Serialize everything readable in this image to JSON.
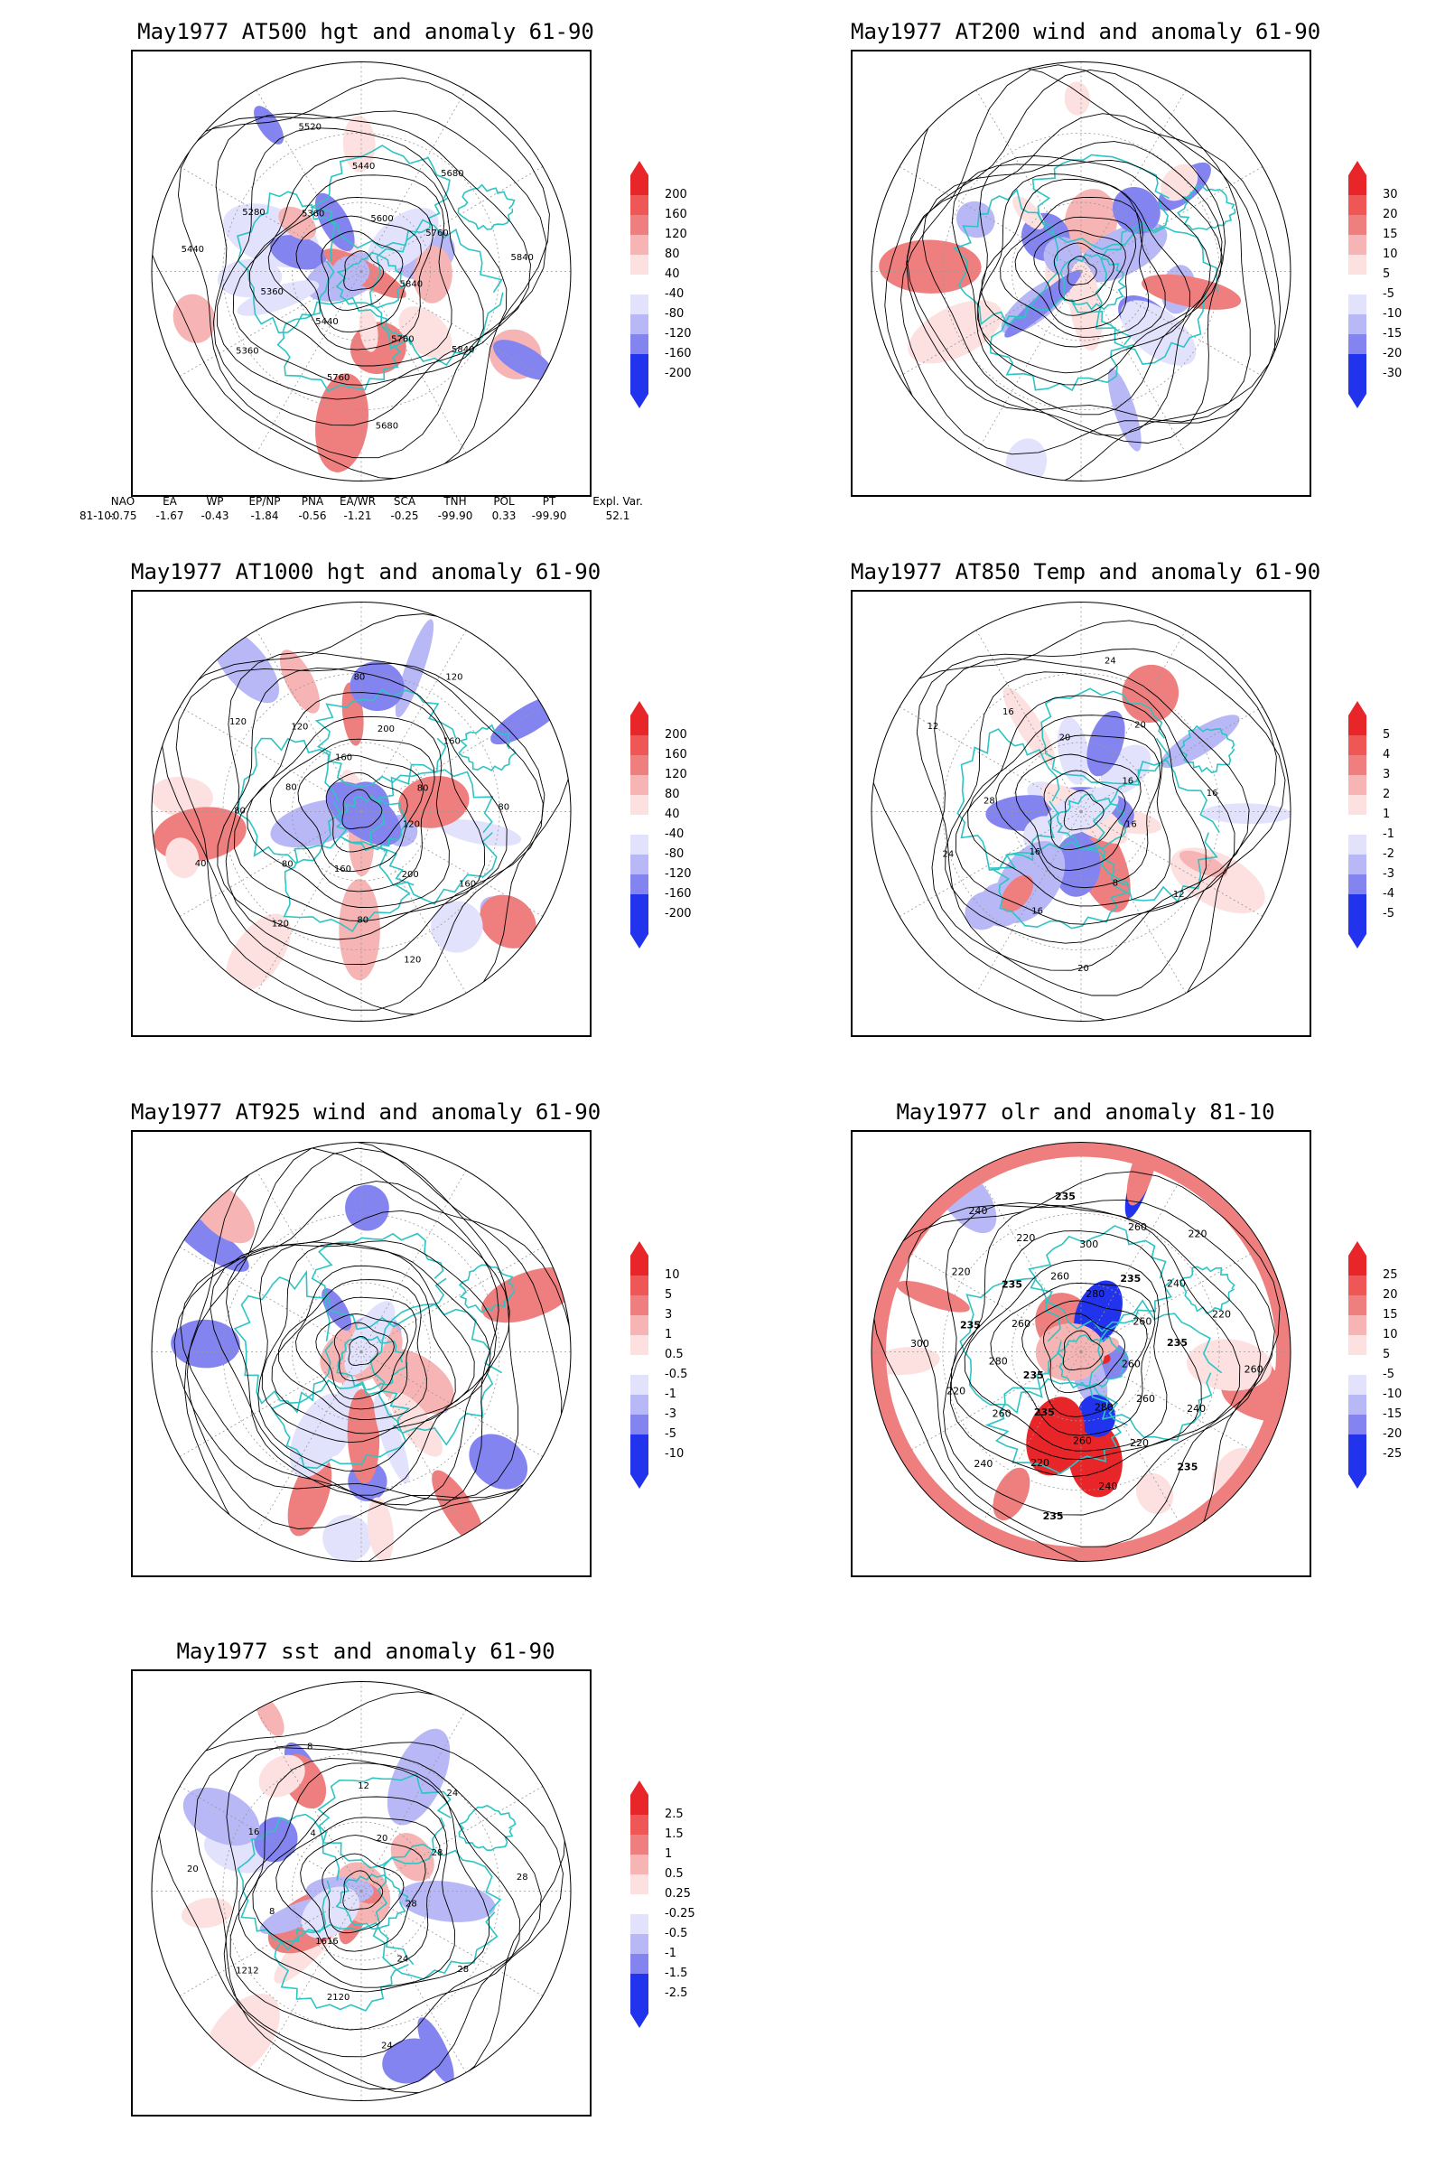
{
  "panels": [
    {
      "id": "p1",
      "title": "May1977 AT500 hgt and anomaly 61-90",
      "contour_labels": [
        "5840",
        "5840",
        "5760",
        "5680",
        "5760",
        "5440",
        "5360",
        "5360",
        "5440",
        "5280",
        "5360",
        "5520",
        "5440",
        "5600",
        "5680",
        "5760",
        "5840"
      ],
      "colorbar": [
        "200",
        "160",
        "120",
        "80",
        "40",
        "-40",
        "-80",
        "-120",
        "-160",
        "-200"
      ]
    },
    {
      "id": "p2",
      "title": "May1977 AT200 wind and anomaly 61-90",
      "contour_labels": [],
      "colorbar": [
        "30",
        "20",
        "15",
        "10",
        "5",
        "-5",
        "-10",
        "-15",
        "-20",
        "-30"
      ]
    },
    {
      "id": "p3",
      "title": "May1977 AT1000 hgt and anomaly 61-90",
      "contour_labels": [
        "120",
        "160",
        "200",
        "120",
        "80",
        "160",
        "120",
        "80",
        "40",
        "80",
        "80",
        "120",
        "120",
        "160",
        "80",
        "200",
        "120",
        "160",
        "80",
        "80"
      ],
      "colorbar": [
        "200",
        "160",
        "120",
        "80",
        "40",
        "-40",
        "-80",
        "-120",
        "-160",
        "-200"
      ]
    },
    {
      "id": "p4",
      "title": "May1977 AT850 Temp and anomaly 61-90",
      "contour_labels": [
        "16",
        "12",
        "8",
        "20",
        "16",
        "16",
        "24",
        "28",
        "12",
        "16",
        "20",
        "24",
        "20",
        "16",
        "16"
      ],
      "colorbar": [
        "5",
        "4",
        "3",
        "2",
        "1",
        "-1",
        "-2",
        "-3",
        "-4",
        "-5"
      ]
    },
    {
      "id": "p5",
      "title": "May1977 AT925 wind and anomaly 61-90",
      "contour_labels": [],
      "colorbar": [
        "10",
        "5",
        "3",
        "1",
        "0.5",
        "-0.5",
        "-1",
        "-3",
        "-5",
        "-10"
      ]
    },
    {
      "id": "p6",
      "title": "May1977 olr and anomaly 81-10",
      "contour_labels": [
        "260",
        "240",
        "260",
        "235",
        "220",
        "280",
        "240",
        "260",
        "235",
        "220",
        "235",
        "240",
        "260",
        "235",
        "220",
        "280",
        "300",
        "235",
        "260",
        "220",
        "235",
        "240",
        "220",
        "260",
        "235",
        "300",
        "280",
        "260",
        "235",
        "220",
        "240",
        "260",
        "220",
        "235",
        "260"
      ],
      "colorbar": [
        "25",
        "20",
        "15",
        "10",
        "5",
        "-5",
        "-10",
        "-15",
        "-20",
        "-25"
      ]
    },
    {
      "id": "p7",
      "title": "May1977 sst and anomaly 61-90",
      "contour_labels": [
        "28",
        "28",
        "24",
        "24",
        "2120",
        "1616",
        "1212",
        "8",
        "20",
        "16",
        "4",
        "8",
        "12",
        "20",
        "24",
        "28",
        "28"
      ],
      "colorbar": [
        "2.5",
        "1.5",
        "1",
        "0.5",
        "0.25",
        "-0.25",
        "-0.5",
        "-1",
        "-1.5",
        "-2.5"
      ]
    }
  ],
  "teleconnection": {
    "headers": [
      "NAO",
      "EA",
      "WP",
      "EP/NP",
      "PNA",
      "EA/WR",
      "SCA",
      "TNH",
      "POL",
      "PT",
      "Expl. Var."
    ],
    "row_label": "81-10:",
    "values": [
      "-0.75",
      "-1.67",
      "-0.43",
      "-1.84",
      "-0.56",
      "-1.21",
      "-0.25",
      "-99.90",
      "0.33",
      "-99.90",
      "52.1"
    ]
  },
  "colors": {
    "coast": "#2ec4c4",
    "positive": "#e8262a",
    "negative": "#2233ee",
    "contour": "#000000"
  }
}
